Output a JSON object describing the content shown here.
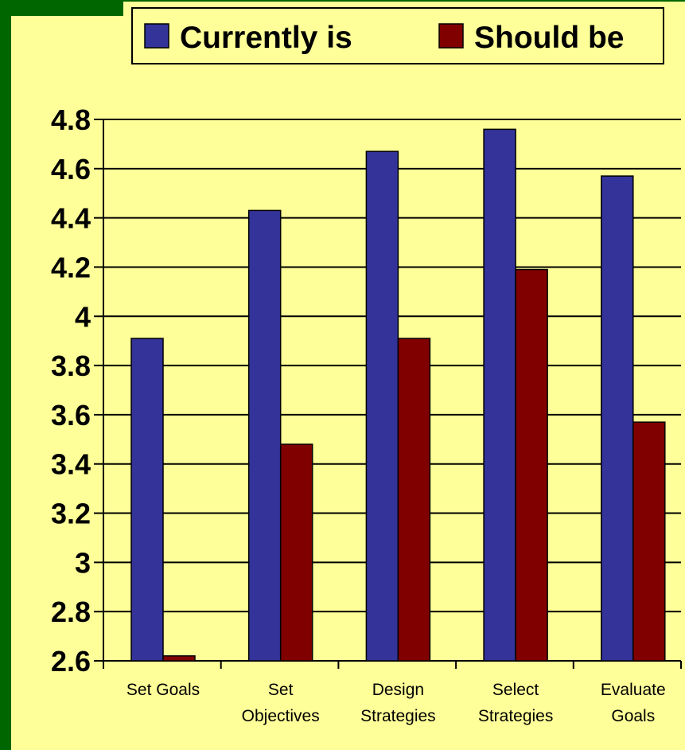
{
  "colors": {
    "background": "#ffff99",
    "frame": "#006600",
    "series_currently": "#333399",
    "series_should": "#800000",
    "gridline": "#000000"
  },
  "chart_data": {
    "type": "bar",
    "categories": [
      [
        "Set Goals"
      ],
      [
        "Set",
        "Objectives"
      ],
      [
        "Design",
        "Strategies"
      ],
      [
        "Select",
        "Strategies"
      ],
      [
        "Evaluate",
        "Goals"
      ]
    ],
    "series": [
      {
        "name": "Currently is",
        "values": [
          3.91,
          4.43,
          4.67,
          4.76,
          4.57
        ]
      },
      {
        "name": "Should be",
        "values": [
          2.62,
          3.48,
          3.91,
          4.19,
          3.57
        ]
      }
    ],
    "y_ticks": [
      "4.8",
      "4.6",
      "4.4",
      "4.2",
      "4",
      "3.8",
      "3.6",
      "3.4",
      "3.2",
      "3",
      "2.8",
      "2.6"
    ],
    "ylim": [
      2.6,
      4.8
    ],
    "grid": true,
    "legend_position": "top",
    "title": "",
    "xlabel": "",
    "ylabel": ""
  }
}
